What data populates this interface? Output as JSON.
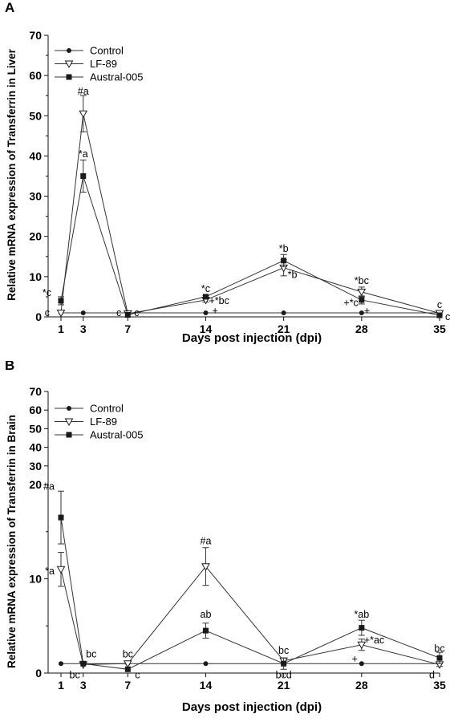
{
  "charts": [
    {
      "id": "A",
      "panel_label": "A",
      "ylabel": "Relative mRNA expression of Transferrin in Liver",
      "xlabel": "Days post injection (dpi)",
      "legend": [
        "Control",
        "LF-89",
        "Austral-005"
      ],
      "x_tick_labels": [
        "1",
        "3",
        "7",
        "14",
        "21",
        "28",
        "35"
      ],
      "y_tick_labels": [
        "0",
        "10",
        "20",
        "30",
        "40",
        "50",
        "60",
        "70"
      ]
    },
    {
      "id": "B",
      "panel_label": "B",
      "ylabel": "Relative mRNA expression of Transferrin in Brain",
      "xlabel": "Days post injection (dpi)",
      "legend": [
        "Control",
        "LF-89",
        "Austral-005"
      ],
      "x_tick_labels": [
        "1",
        "3",
        "7",
        "14",
        "21",
        "28",
        "35"
      ],
      "y_tick_labels": [
        "0",
        "10",
        "20",
        "30",
        "40",
        "50",
        "60",
        "70"
      ]
    }
  ],
  "chart_data": [
    {
      "type": "line",
      "title": "",
      "xlabel": "Days post injection (dpi)",
      "ylabel": "Relative mRNA expression of Transferrin in Liver",
      "x": [
        1,
        3,
        7,
        14,
        21,
        28,
        35
      ],
      "xlim": [
        0,
        36
      ],
      "ylim": [
        0,
        70
      ],
      "legend_position": "top-left",
      "grid": false,
      "series": [
        {
          "name": "Control",
          "marker": "circle",
          "values": [
            1,
            1,
            1,
            1,
            1,
            1,
            1
          ],
          "errors": [
            0,
            0,
            0,
            0,
            0,
            0,
            0
          ]
        },
        {
          "name": "LF-89",
          "marker": "triangle-down-open",
          "values": [
            1,
            50.5,
            0.8,
            4.2,
            12.2,
            6.2,
            0.9
          ],
          "errors": [
            0,
            4.5,
            0,
            0.5,
            2.0,
            1.2,
            0.3
          ]
        },
        {
          "name": "Austral-005",
          "marker": "square",
          "values": [
            4,
            35,
            0.5,
            5,
            14,
            4.2,
            0.4
          ],
          "errors": [
            1,
            4,
            0,
            0.3,
            1.5,
            1.0,
            0
          ]
        }
      ],
      "annotations": [
        {
          "text": "c",
          "x": 1,
          "y": 1
        },
        {
          "text": "*c",
          "x": 1,
          "y": 6
        },
        {
          "text": "#a",
          "x": 3,
          "y": 56
        },
        {
          "text": "*a",
          "x": 3,
          "y": 40.5
        },
        {
          "text": "c",
          "x": 7,
          "y": 1
        },
        {
          "text": "c",
          "x": 7,
          "y": 1
        },
        {
          "text": "*c",
          "x": 14,
          "y": 7
        },
        {
          "text": "+*bc",
          "x": 14,
          "y": 4
        },
        {
          "text": "+",
          "x": 14,
          "y": 1.5
        },
        {
          "text": "*b",
          "x": 21,
          "y": 17
        },
        {
          "text": "*b",
          "x": 21,
          "y": 10.5
        },
        {
          "text": "*bc",
          "x": 28,
          "y": 9
        },
        {
          "text": "+*c",
          "x": 28,
          "y": 3.5
        },
        {
          "text": "+",
          "x": 28,
          "y": 1.5
        },
        {
          "text": "c",
          "x": 35,
          "y": 3
        },
        {
          "text": "c",
          "x": 35,
          "y": 0
        }
      ]
    },
    {
      "type": "line",
      "title": "",
      "xlabel": "Days post injection (dpi)",
      "ylabel": "Relative mRNA expression of Transferrin in Brain",
      "x": [
        1,
        3,
        7,
        14,
        21,
        28,
        35
      ],
      "xlim": [
        0,
        36
      ],
      "ylim": [
        0,
        70
      ],
      "y_axis_break": "linear 0-20, compressed 20-70",
      "legend_position": "top-left",
      "grid": false,
      "series": [
        {
          "name": "Control",
          "marker": "circle",
          "values": [
            1,
            1,
            1,
            1,
            1,
            1,
            1
          ],
          "errors": [
            0,
            0,
            0,
            0,
            0,
            0,
            0
          ]
        },
        {
          "name": "LF-89",
          "marker": "triangle-down-open",
          "values": [
            11,
            0.9,
            1,
            11.3,
            1.3,
            3,
            0.9
          ],
          "errors": [
            1.8,
            0,
            0,
            2.0,
            0.3,
            0.6,
            0.2
          ]
        },
        {
          "name": "Austral-005",
          "marker": "square",
          "values": [
            16.5,
            1,
            0.4,
            4.5,
            1,
            4.8,
            1.6
          ],
          "errors": [
            2.8,
            0,
            0,
            0.8,
            0.6,
            0.8,
            0.6
          ]
        }
      ],
      "annotations": [
        {
          "text": "#a",
          "x": 1,
          "y": 19.8
        },
        {
          "text": "*a",
          "x": 1,
          "y": 10.8
        },
        {
          "text": "bc",
          "x": 3,
          "y": 2
        },
        {
          "text": "bc",
          "x": 3,
          "y": -0.2
        },
        {
          "text": "bc",
          "x": 7,
          "y": 2
        },
        {
          "text": "c",
          "x": 7,
          "y": -0.2
        },
        {
          "text": "#a",
          "x": 14,
          "y": 14
        },
        {
          "text": "ab",
          "x": 14,
          "y": 6.2
        },
        {
          "text": "bc",
          "x": 21,
          "y": 2.4
        },
        {
          "text": "bcd",
          "x": 21,
          "y": -0.2
        },
        {
          "text": "*ab",
          "x": 28,
          "y": 6.2
        },
        {
          "text": "+*ac",
          "x": 28,
          "y": 3.5
        },
        {
          "text": "+",
          "x": 28,
          "y": 1.5
        },
        {
          "text": "bc",
          "x": 35,
          "y": 2.6
        },
        {
          "text": "d",
          "x": 35,
          "y": -0.2
        }
      ]
    }
  ]
}
